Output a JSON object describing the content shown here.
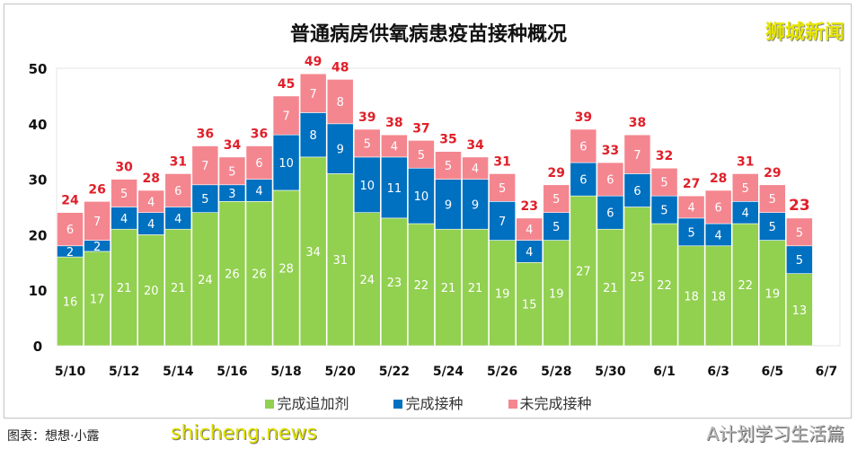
{
  "chart_data": {
    "type": "bar",
    "stacked": true,
    "title": "普通病房供氧病患疫苗接种概况",
    "categories": [
      "5/10",
      "5/11",
      "5/12",
      "5/13",
      "5/14",
      "5/15",
      "5/16",
      "5/17",
      "5/18",
      "5/19",
      "5/20",
      "5/21",
      "5/22",
      "5/23",
      "5/24",
      "5/25",
      "5/26",
      "5/27",
      "5/28",
      "5/29",
      "5/30",
      "5/31",
      "6/1",
      "6/2",
      "6/3",
      "6/4",
      "6/5",
      "6/6"
    ],
    "x_tick_labels": [
      "5/10",
      "5/12",
      "5/14",
      "5/16",
      "5/18",
      "5/20",
      "5/22",
      "5/24",
      "5/26",
      "5/28",
      "5/30",
      "6/1",
      "6/3",
      "6/5",
      "6/7"
    ],
    "series": [
      {
        "name": "完成追加剂",
        "color": "#92d050",
        "values": [
          16,
          17,
          21,
          20,
          21,
          24,
          26,
          26,
          28,
          34,
          31,
          24,
          23,
          22,
          21,
          21,
          19,
          15,
          19,
          27,
          21,
          25,
          22,
          18,
          18,
          22,
          19,
          13
        ]
      },
      {
        "name": "完成接种",
        "color": "#0070c0",
        "values": [
          2,
          2,
          4,
          4,
          4,
          5,
          3,
          4,
          10,
          8,
          9,
          10,
          11,
          10,
          9,
          9,
          7,
          4,
          5,
          6,
          6,
          6,
          5,
          5,
          4,
          4,
          5,
          5
        ]
      },
      {
        "name": "未完成接种",
        "color": "#f4868f",
        "values": [
          6,
          7,
          5,
          4,
          6,
          7,
          5,
          6,
          7,
          7,
          8,
          5,
          4,
          5,
          5,
          4,
          5,
          4,
          5,
          6,
          6,
          7,
          5,
          4,
          6,
          5,
          5,
          5
        ]
      }
    ],
    "totals": [
      24,
      26,
      30,
      28,
      31,
      36,
      34,
      36,
      45,
      49,
      48,
      39,
      38,
      37,
      35,
      34,
      31,
      23,
      29,
      39,
      33,
      38,
      32,
      27,
      28,
      31,
      29,
      23
    ],
    "total_label_color": "#e0202a",
    "ylim": [
      0,
      50
    ],
    "y_ticks": [
      0,
      10,
      20,
      30,
      40,
      50
    ],
    "grid": false,
    "legend_position": "bottom"
  },
  "brand": "狮城新闻",
  "watermark_site": "shicheng.news",
  "watermark_account": "A计划学习生活篇",
  "caption": "图表：想想·小露"
}
